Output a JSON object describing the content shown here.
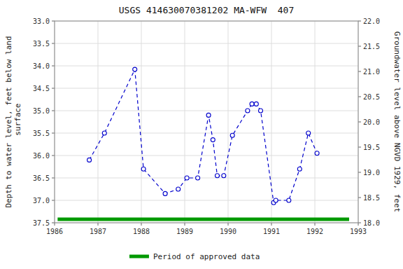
{
  "chart_data": {
    "type": "line",
    "title": "USGS 414630070381202 MA-WFW  407",
    "y_label": "Depth to water level, feet below land\n surface",
    "y2_label": "Groundwater level above NGVD 1929, feet",
    "x": [
      1986.8,
      1987.15,
      1987.85,
      1988.05,
      1988.55,
      1988.85,
      1989.05,
      1989.3,
      1989.55,
      1989.65,
      1989.75,
      1989.9,
      1990.1,
      1990.45,
      1990.55,
      1990.65,
      1990.75,
      1991.05,
      1991.1,
      1991.4,
      1991.65,
      1991.85,
      1992.05
    ],
    "series": [
      {
        "color": "#0000cc",
        "line_style": "dashed",
        "marker": "circle",
        "values": [
          36.1,
          35.5,
          34.08,
          36.3,
          36.85,
          36.75,
          36.5,
          36.5,
          35.1,
          35.65,
          36.45,
          36.45,
          35.55,
          35.0,
          34.85,
          34.85,
          35.0,
          37.05,
          37.0,
          37.0,
          36.3,
          35.5,
          35.95
        ]
      },
      {
        "name": "Period of approved data",
        "color": "#009900",
        "line_style": "solid",
        "x": [
          1986.07,
          1992.79
        ],
        "values": [
          37.42,
          37.42
        ]
      }
    ],
    "xlim": [
      1986,
      1993
    ],
    "xticks": [
      1986,
      1987,
      1988,
      1989,
      1990,
      1991,
      1992,
      1993
    ],
    "ylim": [
      37.5,
      33.0
    ],
    "yticks": [
      {
        "value": 33.0,
        "label": "33.0"
      },
      33.5,
      {
        "value": 34.0,
        "label": "34.0"
      },
      34.5,
      {
        "value": 35.0,
        "label": "35.0"
      },
      35.5,
      {
        "value": 36.0,
        "label": "36.0"
      },
      36.5,
      {
        "value": 37.0,
        "label": "37.0"
      },
      37.5
    ],
    "y2lim": [
      18.0,
      22.0
    ],
    "y2ticks": [
      {
        "value": 18.0,
        "label": "18.0"
      },
      18.5,
      {
        "value": 19.0,
        "label": "19.0"
      },
      19.5,
      {
        "value": 20.0,
        "label": "20.0"
      },
      20.5,
      {
        "value": 21.0,
        "label": "21.0"
      },
      21.5,
      {
        "value": 22.0,
        "label": "22.0"
      }
    ],
    "grid": true,
    "legend": "bottom"
  }
}
